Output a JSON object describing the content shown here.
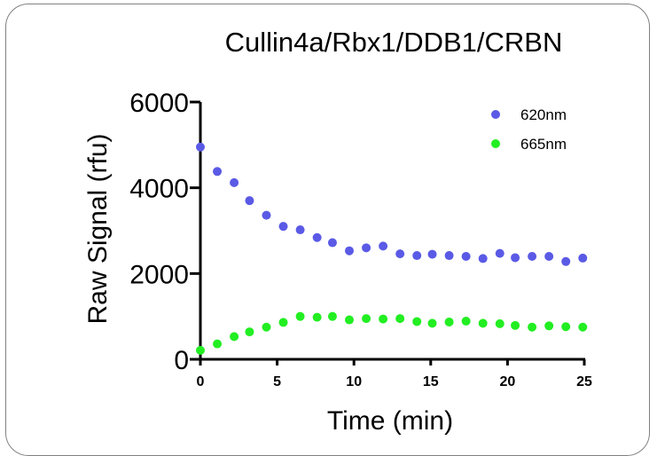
{
  "chart_data": {
    "type": "scatter",
    "title": "Cullin4a/Rbx1/DDB1/CRBN",
    "xlabel": "Time (min)",
    "ylabel": "Raw Signal (rfu)",
    "xlim": [
      0,
      25
    ],
    "ylim": [
      0,
      6000
    ],
    "xticks": [
      0,
      5,
      10,
      15,
      20,
      25
    ],
    "yticks": [
      0,
      2000,
      4000,
      6000
    ],
    "grid": false,
    "legend_position": "top-right",
    "series": [
      {
        "name": "620nm",
        "color": "#5a5ae6",
        "points": [
          [
            0,
            4950
          ],
          [
            1.1,
            4380
          ],
          [
            2.2,
            4120
          ],
          [
            3.2,
            3700
          ],
          [
            4.3,
            3360
          ],
          [
            5.4,
            3100
          ],
          [
            6.5,
            3020
          ],
          [
            7.6,
            2840
          ],
          [
            8.6,
            2720
          ],
          [
            9.7,
            2530
          ],
          [
            10.8,
            2600
          ],
          [
            11.9,
            2640
          ],
          [
            13.0,
            2460
          ],
          [
            14.1,
            2420
          ],
          [
            15.1,
            2450
          ],
          [
            16.2,
            2420
          ],
          [
            17.3,
            2400
          ],
          [
            18.4,
            2350
          ],
          [
            19.5,
            2470
          ],
          [
            20.5,
            2370
          ],
          [
            21.6,
            2400
          ],
          [
            22.7,
            2400
          ],
          [
            23.8,
            2280
          ],
          [
            24.9,
            2360
          ]
        ]
      },
      {
        "name": "665nm",
        "color": "#22ee22",
        "points": [
          [
            0,
            210
          ],
          [
            1.1,
            360
          ],
          [
            2.2,
            530
          ],
          [
            3.2,
            640
          ],
          [
            4.3,
            750
          ],
          [
            5.4,
            860
          ],
          [
            6.5,
            1000
          ],
          [
            7.6,
            980
          ],
          [
            8.6,
            1000
          ],
          [
            9.7,
            920
          ],
          [
            10.8,
            950
          ],
          [
            11.9,
            940
          ],
          [
            13.0,
            950
          ],
          [
            14.1,
            880
          ],
          [
            15.1,
            840
          ],
          [
            16.2,
            870
          ],
          [
            17.3,
            890
          ],
          [
            18.4,
            840
          ],
          [
            19.5,
            830
          ],
          [
            20.5,
            790
          ],
          [
            21.6,
            750
          ],
          [
            22.7,
            780
          ],
          [
            23.8,
            760
          ],
          [
            24.9,
            750
          ]
        ]
      }
    ]
  }
}
